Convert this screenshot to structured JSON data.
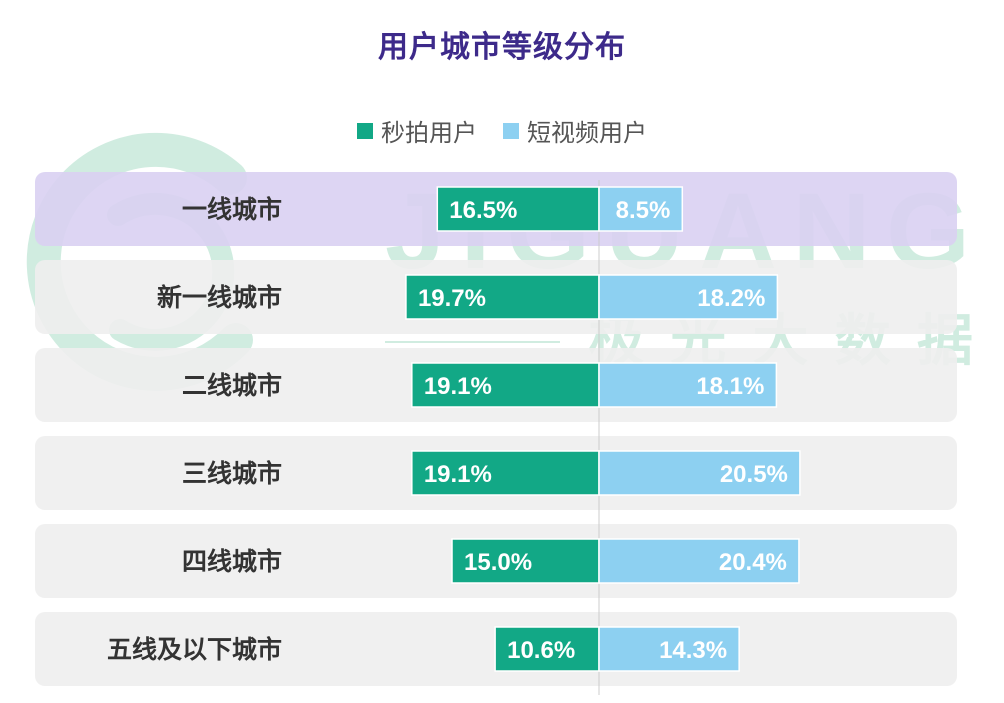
{
  "chart_data": {
    "type": "bar",
    "orientation": "horizontal-diverging",
    "title": "用户城市等级分布",
    "categories": [
      "一线城市",
      "新一线城市",
      "二线城市",
      "三线城市",
      "四线城市",
      "五线及以下城市"
    ],
    "series": [
      {
        "name": "秒拍用户",
        "values": [
          16.5,
          19.7,
          19.1,
          19.1,
          15.0,
          10.6
        ],
        "labels": [
          "16.5%",
          "19.7%",
          "19.1%",
          "19.1%",
          "15.0%",
          "10.6%"
        ],
        "direction": "left"
      },
      {
        "name": "短视频用户",
        "values": [
          8.5,
          18.2,
          18.1,
          20.5,
          20.4,
          14.3
        ],
        "labels": [
          "8.5%",
          "18.2%",
          "18.1%",
          "20.5%",
          "20.4%",
          "14.3%"
        ],
        "direction": "right"
      }
    ],
    "highlighted_category": "一线城市",
    "legend_position": "top-center",
    "grid": false
  },
  "watermark": {
    "text_latin": "JIGUANG",
    "text_cn": "极光大数据"
  },
  "colors": {
    "title": "#3d2a8a",
    "series_1": "#12a886",
    "series_2": "#8dd0f1",
    "row_background": "#eeeeee",
    "row_highlight": "#d9d0f2",
    "category_text": "#333333",
    "watermark": "#1aa468"
  }
}
